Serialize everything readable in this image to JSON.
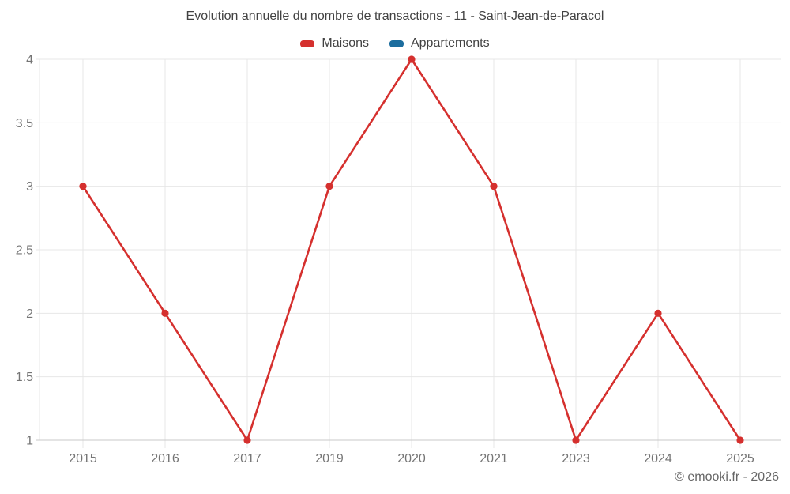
{
  "header": {
    "title": "Evolution annuelle du nombre de transactions - 11 - Saint-Jean-de-Paracol"
  },
  "footer": {
    "copyright": "© emooki.fr - 2026"
  },
  "chart_data": {
    "type": "line",
    "title": "Evolution annuelle du nombre de transactions - 11 - Saint-Jean-de-Paracol",
    "categories": [
      "2015",
      "2016",
      "2017",
      "2019",
      "2020",
      "2021",
      "2023",
      "2024",
      "2025"
    ],
    "series": [
      {
        "name": "Maisons",
        "color": "#d5302e",
        "values": [
          3,
          2,
          1,
          3,
          4,
          3,
          1,
          2,
          1
        ]
      },
      {
        "name": "Appartements",
        "color": "#1c6d9e",
        "values": []
      }
    ],
    "xlabel": "",
    "ylabel": "",
    "ylim": [
      1,
      4
    ],
    "yticks": [
      "1",
      "1.5",
      "2",
      "2.5",
      "3",
      "3.5",
      "4"
    ],
    "grid": true,
    "legend_position": "top",
    "marker_radius": 4.6,
    "line_width": 2.6
  }
}
